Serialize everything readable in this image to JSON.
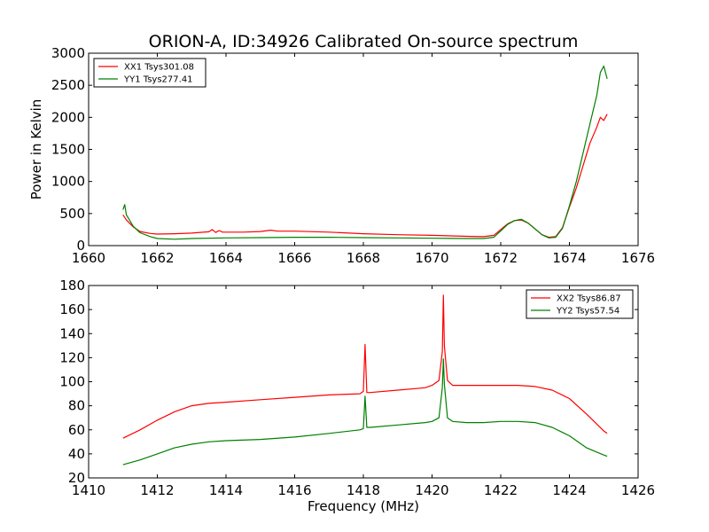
{
  "title": "ORION-A, ID:34926 Calibrated On-source spectrum",
  "colors": {
    "red": "#ff0000",
    "green": "#008000"
  },
  "chart_data": [
    {
      "type": "line",
      "xlabel": "",
      "ylabel": "Power in Kelvin",
      "xlim": [
        1660,
        1676
      ],
      "ylim": [
        0,
        3000
      ],
      "xticks": [
        "1660",
        "1662",
        "1664",
        "1666",
        "1668",
        "1670",
        "1672",
        "1674",
        "1676"
      ],
      "yticks": [
        "0",
        "500",
        "1000",
        "1500",
        "2000",
        "2500",
        "3000"
      ],
      "legend_position": "top-left",
      "series": [
        {
          "name": "XX1 Tsys301.08",
          "color": "red",
          "x": [
            1661.0,
            1661.1,
            1661.3,
            1661.5,
            1661.8,
            1662.0,
            1662.5,
            1663.0,
            1663.5,
            1663.6,
            1663.7,
            1663.8,
            1663.9,
            1664.5,
            1665.0,
            1665.3,
            1665.5,
            1666.0,
            1667.0,
            1668.0,
            1669.0,
            1670.0,
            1671.0,
            1671.5,
            1671.8,
            1672.0,
            1672.2,
            1672.4,
            1672.6,
            1672.8,
            1673.0,
            1673.2,
            1673.4,
            1673.6,
            1673.8,
            1674.0,
            1674.2,
            1674.4,
            1674.6,
            1674.8,
            1674.9,
            1675.0,
            1675.1
          ],
          "y": [
            480,
            400,
            290,
            220,
            190,
            180,
            185,
            195,
            215,
            250,
            205,
            235,
            210,
            210,
            220,
            240,
            225,
            225,
            210,
            185,
            170,
            160,
            145,
            140,
            160,
            250,
            340,
            390,
            400,
            350,
            260,
            170,
            130,
            140,
            280,
            600,
            900,
            1250,
            1600,
            1850,
            2000,
            1950,
            2050
          ]
        },
        {
          "name": "YY1 Tsys277.41",
          "color": "green",
          "x": [
            1661.0,
            1661.05,
            1661.1,
            1661.3,
            1661.5,
            1661.8,
            1662.0,
            1662.5,
            1663.0,
            1664.0,
            1665.0,
            1666.0,
            1667.0,
            1668.0,
            1669.0,
            1670.0,
            1671.0,
            1671.5,
            1671.8,
            1672.0,
            1672.2,
            1672.4,
            1672.6,
            1672.8,
            1673.0,
            1673.2,
            1673.4,
            1673.6,
            1673.8,
            1674.0,
            1674.2,
            1674.4,
            1674.6,
            1674.8,
            1674.9,
            1675.0,
            1675.1
          ],
          "y": [
            560,
            640,
            480,
            300,
            200,
            140,
            110,
            100,
            110,
            120,
            125,
            130,
            130,
            125,
            120,
            115,
            110,
            110,
            130,
            230,
            330,
            390,
            410,
            350,
            260,
            170,
            120,
            130,
            270,
            620,
            1000,
            1450,
            1900,
            2350,
            2700,
            2800,
            2600
          ]
        }
      ]
    },
    {
      "type": "line",
      "xlabel": "Frequency (MHz)",
      "ylabel": "",
      "xlim": [
        1410,
        1426
      ],
      "ylim": [
        20,
        180
      ],
      "xticks": [
        "1410",
        "1412",
        "1414",
        "1416",
        "1418",
        "1420",
        "1422",
        "1424",
        "1426"
      ],
      "yticks": [
        "20",
        "40",
        "60",
        "80",
        "100",
        "120",
        "140",
        "160",
        "180"
      ],
      "legend_position": "top-right",
      "series": [
        {
          "name": "XX2 Tsys86.87",
          "color": "red",
          "x": [
            1411.0,
            1411.5,
            1412.0,
            1412.5,
            1413.0,
            1413.5,
            1414.0,
            1415.0,
            1416.0,
            1417.0,
            1417.9,
            1418.0,
            1418.05,
            1418.1,
            1418.2,
            1419.0,
            1419.8,
            1420.0,
            1420.2,
            1420.3,
            1420.33,
            1420.36,
            1420.45,
            1420.6,
            1421.0,
            1421.5,
            1422.0,
            1422.5,
            1423.0,
            1423.5,
            1424.0,
            1424.5,
            1425.0,
            1425.1
          ],
          "y": [
            53,
            60,
            68,
            75,
            80,
            82,
            83,
            85,
            87,
            89,
            90,
            92,
            131,
            91,
            91,
            93,
            95,
            97,
            101,
            125,
            172,
            130,
            101,
            97,
            97,
            97,
            97,
            97,
            96,
            93,
            86,
            73,
            59,
            57
          ]
        },
        {
          "name": "YY2 Tsys57.54",
          "color": "green",
          "x": [
            1411.0,
            1411.5,
            1412.0,
            1412.5,
            1413.0,
            1413.5,
            1414.0,
            1415.0,
            1416.0,
            1417.0,
            1417.9,
            1418.0,
            1418.05,
            1418.1,
            1418.2,
            1419.0,
            1419.8,
            1420.0,
            1420.2,
            1420.3,
            1420.33,
            1420.36,
            1420.45,
            1420.6,
            1421.0,
            1421.5,
            1422.0,
            1422.5,
            1423.0,
            1423.5,
            1424.0,
            1424.5,
            1425.0,
            1425.1
          ],
          "y": [
            31,
            35,
            40,
            45,
            48,
            50,
            51,
            52,
            54,
            57,
            60,
            61,
            88,
            62,
            62,
            64,
            66,
            67,
            70,
            95,
            119,
            98,
            70,
            67,
            66,
            66,
            67,
            67,
            66,
            62,
            55,
            45,
            39,
            38
          ]
        }
      ]
    }
  ]
}
